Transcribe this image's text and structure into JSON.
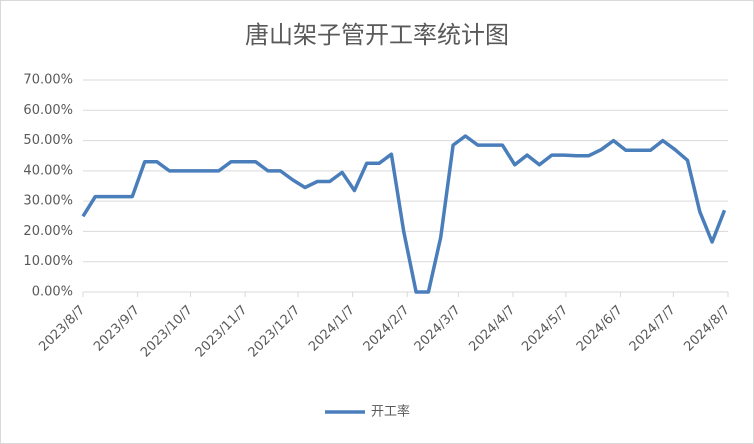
{
  "chart_data": {
    "type": "line",
    "title": "唐山架子管开工率统计图",
    "x": [
      "2023/8/7",
      "2023/8/14",
      "2023/8/21",
      "2023/8/28",
      "2023/9/4",
      "2023/9/11",
      "2023/9/18",
      "2023/9/25",
      "2023/10/2",
      "2023/10/9",
      "2023/10/16",
      "2023/10/23",
      "2023/10/30",
      "2023/11/6",
      "2023/11/13",
      "2023/11/20",
      "2023/11/27",
      "2023/12/4",
      "2023/12/11",
      "2023/12/18",
      "2023/12/25",
      "2024/1/1",
      "2024/1/8",
      "2024/1/15",
      "2024/1/22",
      "2024/1/29",
      "2024/2/5",
      "2024/2/12",
      "2024/2/19",
      "2024/2/26",
      "2024/3/4",
      "2024/3/11",
      "2024/3/18",
      "2024/3/25",
      "2024/4/1",
      "2024/4/8",
      "2024/4/15",
      "2024/4/22",
      "2024/4/29",
      "2024/5/6",
      "2024/5/13",
      "2024/5/20",
      "2024/5/27",
      "2024/6/3",
      "2024/6/10",
      "2024/6/17",
      "2024/6/24",
      "2024/7/1",
      "2024/7/8",
      "2024/7/15",
      "2024/7/22",
      "2024/7/29",
      "2024/8/5"
    ],
    "series": [
      {
        "name": "开工率",
        "color": "#4a7ebb",
        "values": [
          25,
          31.5,
          31.5,
          31.5,
          31.5,
          43,
          43,
          40,
          40,
          40,
          40,
          40,
          43,
          43,
          43,
          40,
          40,
          37,
          34.5,
          36.5,
          36.5,
          39.5,
          33.5,
          42.5,
          42.5,
          45.5,
          20,
          0,
          0,
          18,
          48.5,
          51.5,
          48.5,
          48.5,
          48.5,
          42,
          45.2,
          42,
          45.2,
          45.2,
          45,
          45,
          47,
          50,
          46.8,
          46.8,
          46.8,
          50,
          47,
          43.5,
          26.5,
          16.5,
          27
        ]
      }
    ],
    "xlim": [
      "2023/8/7",
      "2024/8/7"
    ],
    "xticks": [
      "2023/8/7",
      "2023/9/7",
      "2023/10/7",
      "2023/11/7",
      "2023/12/7",
      "2024/1/7",
      "2024/2/7",
      "2024/3/7",
      "2024/4/7",
      "2024/5/7",
      "2024/6/7",
      "2024/7/7",
      "2024/8/7"
    ],
    "ylim": [
      0,
      70
    ],
    "yticks": [
      {
        "value": 0,
        "label": "0.00%"
      },
      {
        "value": 10,
        "label": "10.00%"
      },
      {
        "value": 20,
        "label": "20.00%"
      },
      {
        "value": 30,
        "label": "30.00%"
      },
      {
        "value": 40,
        "label": "40.00%"
      },
      {
        "value": 50,
        "label": "50.00%"
      },
      {
        "value": 60,
        "label": "60.00%"
      },
      {
        "value": 70,
        "label": "70.00%"
      }
    ],
    "grid": true,
    "legend": "bottom"
  }
}
